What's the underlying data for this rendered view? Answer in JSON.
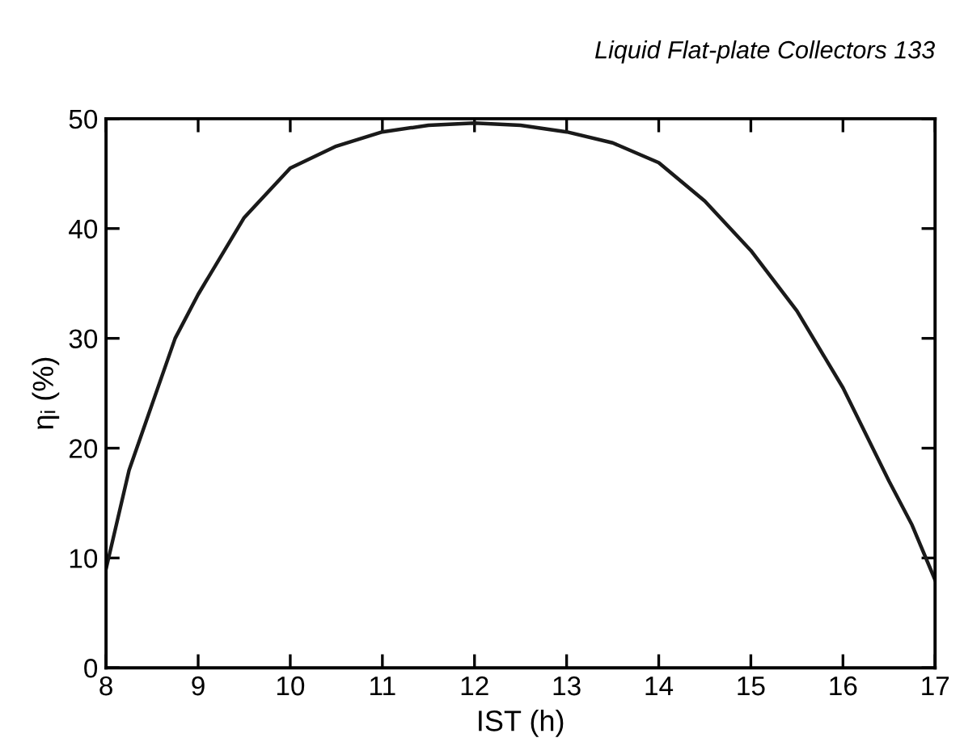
{
  "chart_data": {
    "type": "line",
    "xlabel": "IST (h)",
    "ylabel": "ηᵢ (%)",
    "annotations": [
      "Liquid Flat-plate Collectors 133"
    ],
    "x": [
      8,
      8.25,
      8.5,
      8.75,
      9,
      9.5,
      10,
      10.5,
      11,
      11.5,
      12,
      12.5,
      13,
      13.5,
      14,
      14.5,
      15,
      15.5,
      16,
      16.5,
      16.75,
      17
    ],
    "series": [
      {
        "color": "#1a1a1a",
        "values": [
          9,
          18,
          24,
          30,
          34,
          41,
          45.5,
          47.5,
          48.8,
          49.4,
          49.6,
          49.4,
          48.8,
          47.8,
          46,
          42.5,
          38,
          32.5,
          25.5,
          17,
          13,
          8
        ]
      }
    ],
    "xlim": [
      8,
      17
    ],
    "ylim": [
      0,
      50
    ],
    "xticks": [
      8,
      9,
      10,
      11,
      12,
      13,
      14,
      15,
      16,
      17
    ],
    "yticks": [
      0,
      10,
      20,
      30,
      40,
      50
    ],
    "grid": false,
    "legend": false,
    "marker": "none",
    "line_style": "solid"
  }
}
